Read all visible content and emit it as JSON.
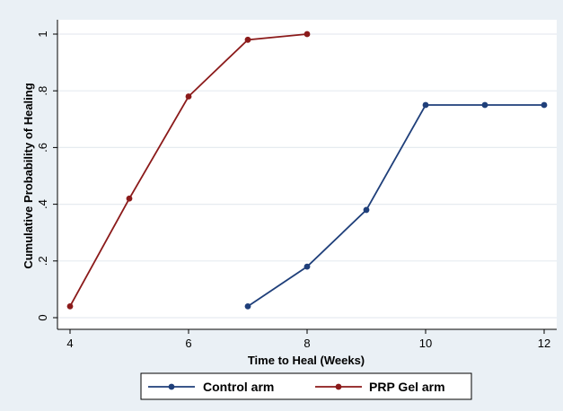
{
  "chart_data": {
    "type": "line",
    "xlabel": "Time to Heal (Weeks)",
    "ylabel": "Cumulative Probability of Healing",
    "xlim": [
      4,
      12
    ],
    "ylim": [
      0,
      1
    ],
    "x_ticks": [
      4,
      6,
      8,
      10,
      12
    ],
    "x_tick_labels": [
      "4",
      "6",
      "8",
      "10",
      "12"
    ],
    "y_ticks": [
      0,
      0.2,
      0.4,
      0.6,
      0.8,
      1
    ],
    "y_tick_labels": [
      "0",
      ".2",
      ".4",
      ".6",
      ".8",
      "1"
    ],
    "grid": true,
    "legend_position": "bottom",
    "series": [
      {
        "name": "Control arm",
        "color": "#1f3f7a",
        "x": [
          7,
          8,
          9,
          10,
          11,
          12
        ],
        "y": [
          0.04,
          0.18,
          0.38,
          0.75,
          0.75,
          0.75
        ]
      },
      {
        "name": "PRP Gel arm",
        "color": "#8b1a1a",
        "x": [
          4,
          5,
          6,
          7,
          8
        ],
        "y": [
          0.04,
          0.42,
          0.78,
          0.98,
          1.0
        ]
      }
    ]
  },
  "colors": {
    "background": "#eaf0f5",
    "plot_area": "#ffffff",
    "grid": "#e6ebf0"
  }
}
